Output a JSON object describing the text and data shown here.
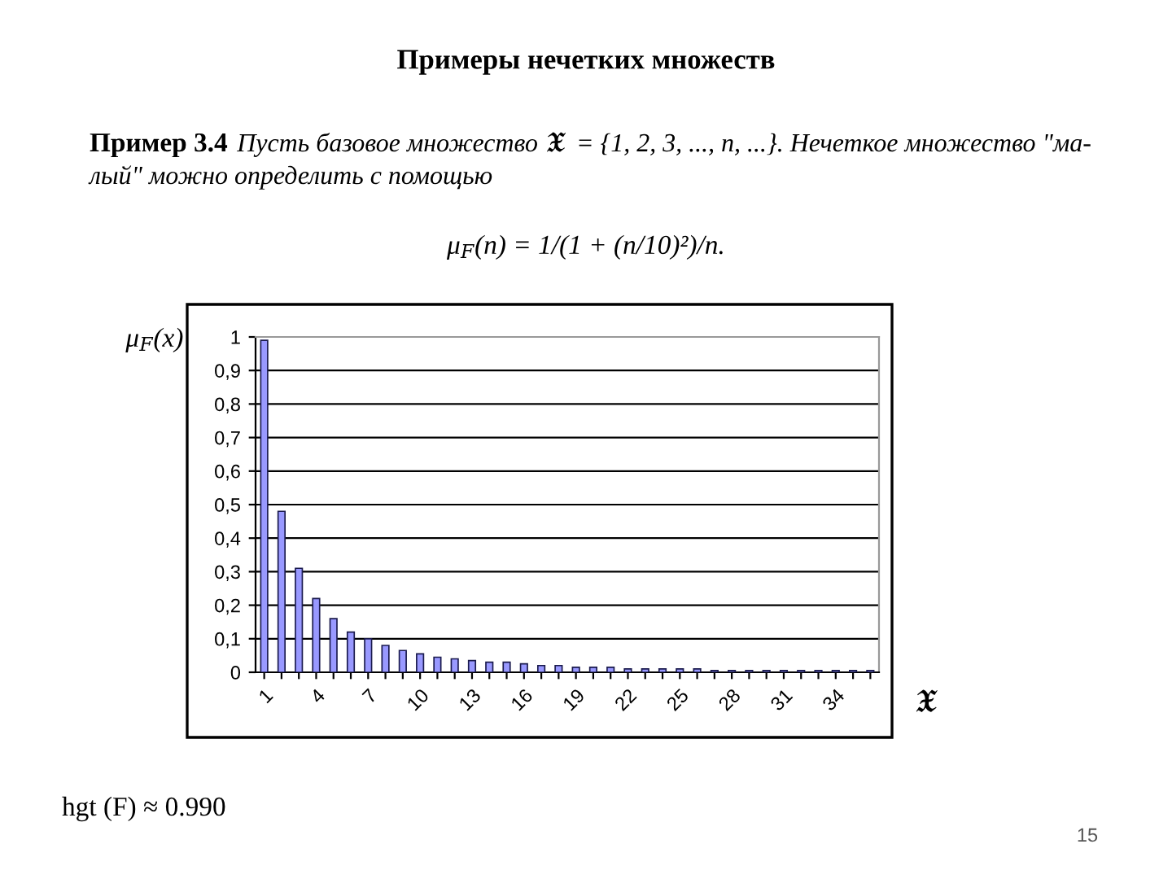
{
  "chart_data": {
    "type": "bar",
    "title": "Примеры нечетких множеств",
    "annotations": [
      "Пример 3.4",
      "Пусть базовое множество 𝔛 = {1, 2, 3, ..., n, ...}. Нечеткое множество \"ма-",
      "лый\" можно определить с помощью",
      "μ$_{F}$(n) = 1/(1 + (n/10)²)/n.",
      "hgt (F) ≈ 0.990",
      "15"
    ],
    "ylabel": "μ$_{F}$(x)",
    "xlabel": "𝔛",
    "categories": [
      "1",
      null,
      null,
      "4",
      null,
      null,
      "7",
      null,
      null,
      "10",
      null,
      null,
      "13",
      null,
      null,
      "16",
      null,
      null,
      "19",
      null,
      null,
      "22",
      null,
      null,
      "25",
      null,
      null,
      "28",
      null,
      null,
      "31",
      null,
      null,
      "34",
      null,
      null
    ],
    "values": [
      0.99,
      0.48,
      0.31,
      0.22,
      0.16,
      0.12,
      0.1,
      0.08,
      0.065,
      0.055,
      0.045,
      0.04,
      0.035,
      0.03,
      0.03,
      0.025,
      0.02,
      0.02,
      0.015,
      0.015,
      0.015,
      0.01,
      0.01,
      0.01,
      0.01,
      0.01,
      0.005,
      0.005,
      0.005,
      0.005,
      0.005,
      0.005,
      0.005,
      0.005,
      0.005,
      0.005
    ],
    "color": "#9999ff",
    "ylim": [
      0,
      1
    ],
    "yticks": [
      0,
      {
        "value": 0.1,
        "label": "0,1"
      },
      {
        "value": 0.2,
        "label": "0,2"
      },
      {
        "value": 0.3,
        "label": "0,3"
      },
      {
        "value": 0.4,
        "label": "0,4"
      },
      {
        "value": 0.5,
        "label": "0,5"
      },
      {
        "value": 0.6,
        "label": "0,6"
      },
      {
        "value": 0.7,
        "label": "0,7"
      },
      {
        "value": 0.8,
        "label": "0,8"
      },
      {
        "value": 0.9,
        "label": "0,9"
      },
      1
    ],
    "grid": "y"
  }
}
